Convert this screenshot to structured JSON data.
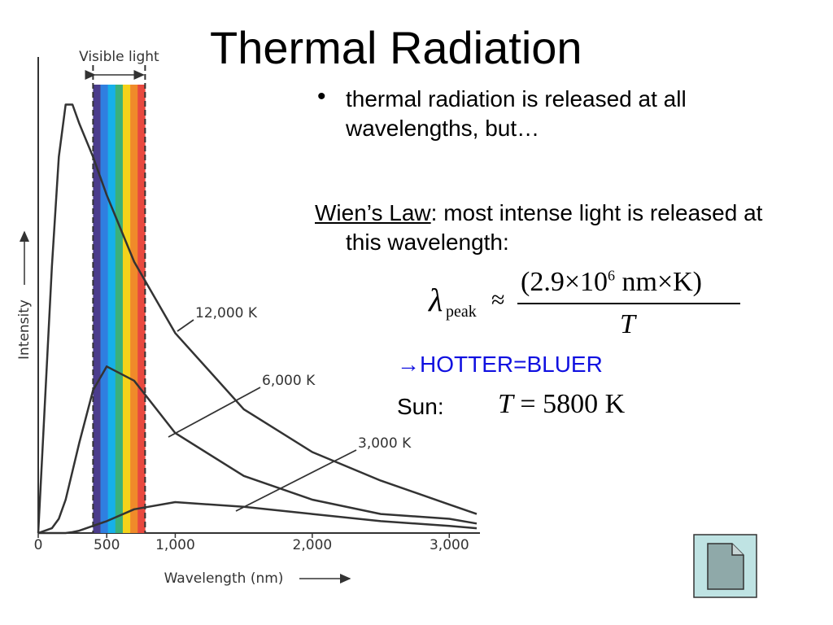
{
  "title": "Thermal Radiation",
  "bullet": "thermal radiation is released at all wavelengths, but…",
  "wien": {
    "term": "Wien’s Law",
    "rest": ": most intense light is released at this wavelength:"
  },
  "formula": {
    "lambda": "λ",
    "sub": "peak",
    "approx": "≈",
    "numerator": "(2.9×10",
    "exponent": "6",
    "numerator_end": " nm×K)",
    "denominator": "T"
  },
  "rule": "→HOTTER=BLUER",
  "sun": {
    "label": "Sun:",
    "var": "T",
    "value": "= 5800 K"
  },
  "chart_data": {
    "type": "line",
    "xlabel": "Wavelength (nm)",
    "ylabel": "Intensity",
    "x": [
      0,
      100,
      150,
      200,
      250,
      300,
      400,
      500,
      700,
      1000,
      1500,
      2000,
      2500,
      3000,
      3200
    ],
    "series": [
      {
        "name": "12,000 K",
        "color": "#333333",
        "values": [
          0,
          56,
          79,
          90,
          90,
          86,
          79,
          71,
          57,
          42,
          26,
          17,
          11,
          6,
          4
        ]
      },
      {
        "name": "6,000 K",
        "color": "#333333",
        "values": [
          0,
          1,
          3,
          7,
          13,
          19,
          30,
          35,
          32,
          21,
          12,
          7,
          4,
          3,
          2
        ]
      },
      {
        "name": "3,000 K",
        "color": "#333333",
        "values": [
          0,
          0,
          0,
          0,
          0.2,
          0.5,
          1.5,
          2.5,
          5,
          6.5,
          5.5,
          4,
          2.5,
          1.5,
          1
        ]
      }
    ],
    "xlim": [
      0,
      3200
    ],
    "ylim": [
      0,
      100
    ],
    "xticks": [
      0,
      500,
      {
        "value": 1000,
        "label": "1,000"
      },
      {
        "value": 2000,
        "label": "2,000"
      },
      {
        "value": 3000,
        "label": "3,000"
      }
    ],
    "visible_band": {
      "label": "Visible light",
      "range": [
        400,
        780
      ],
      "colors": [
        "#4b3c8c",
        "#2f7fe0",
        "#16b0e8",
        "#3bb07a",
        "#f5d21a",
        "#f08a2a",
        "#e8493f"
      ]
    }
  }
}
